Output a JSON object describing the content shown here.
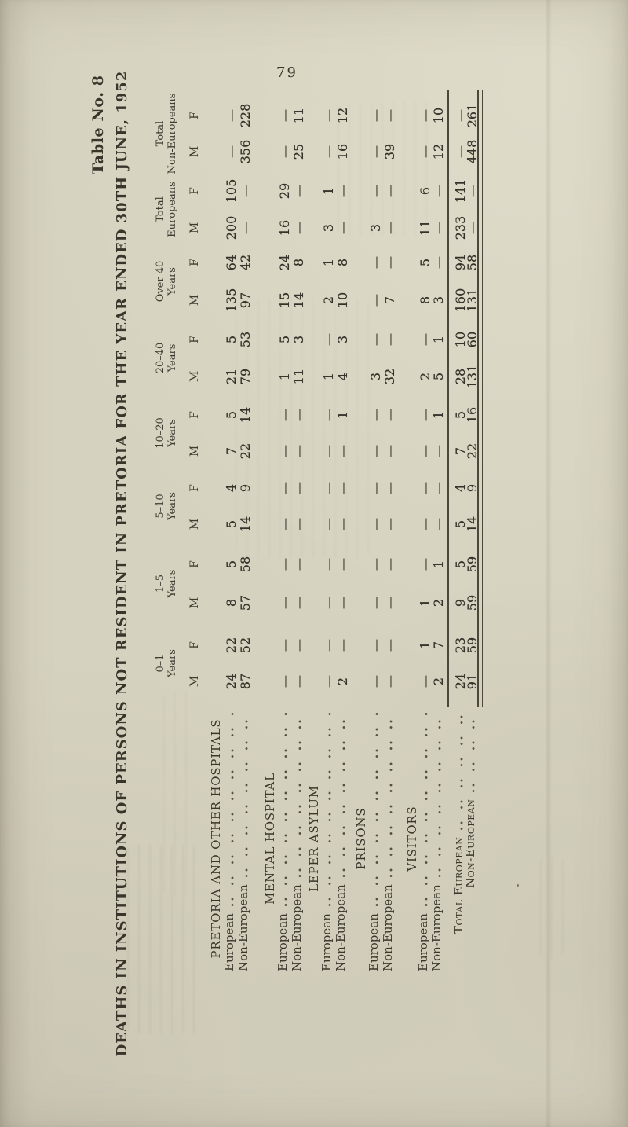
{
  "page": {
    "number": "79"
  },
  "table": {
    "label": "Table No. 8",
    "title": "DEATHS IN INSTITUTIONS OF PERSONS NOT RESIDENT IN PRETORIA FOR THE YEAR ENDED 30TH JUNE, 1952",
    "sex_labels": [
      "M",
      "F"
    ],
    "age_groups": [
      {
        "line1": "0–1",
        "line2": "Years"
      },
      {
        "line1": "1–5",
        "line2": "Years"
      },
      {
        "line1": "5–10",
        "line2": "Years"
      },
      {
        "line1": "10–20",
        "line2": "Years"
      },
      {
        "line1": "20–40",
        "line2": "Years"
      },
      {
        "line1": "Over 40",
        "line2": "Years"
      },
      {
        "line1": "Total",
        "line2": "Europeans"
      },
      {
        "line1": "Total",
        "line2": "Non-Europeans"
      }
    ],
    "sections": [
      {
        "heading": "PRETORIA AND OTHER HOSPITALS",
        "rows": [
          {
            "label": "European",
            "values": [
              "24",
              "22",
              "8",
              "5",
              "5",
              "4",
              "7",
              "5",
              "21",
              "5",
              "135",
              "64",
              "200",
              "105",
              "—",
              "—"
            ]
          },
          {
            "label": "Non-European",
            "values": [
              "87",
              "52",
              "57",
              "58",
              "14",
              "9",
              "22",
              "14",
              "79",
              "53",
              "97",
              "42",
              "—",
              "—",
              "356",
              "228"
            ]
          }
        ]
      },
      {
        "heading": "MENTAL HOSPITAL",
        "rows": [
          {
            "label": "European",
            "values": [
              "—",
              "—",
              "—",
              "—",
              "—",
              "—",
              "—",
              "—",
              "1",
              "5",
              "15",
              "24",
              "16",
              "29",
              "—",
              "—"
            ]
          },
          {
            "label": "Non-European",
            "values": [
              "—",
              "—",
              "—",
              "—",
              "—",
              "—",
              "—",
              "—",
              "11",
              "3",
              "14",
              "8",
              "—",
              "—",
              "25",
              "11"
            ]
          }
        ]
      },
      {
        "heading": "LEPER ASYLUM",
        "rows": [
          {
            "label": "European",
            "values": [
              "—",
              "—",
              "—",
              "—",
              "—",
              "—",
              "—",
              "—",
              "1",
              "—",
              "2",
              "1",
              "3",
              "1",
              "—",
              "—"
            ]
          },
          {
            "label": "Non-European",
            "values": [
              "2",
              "—",
              "—",
              "—",
              "—",
              "—",
              "—",
              "1",
              "4",
              "3",
              "10",
              "8",
              "—",
              "—",
              "16",
              "12"
            ]
          }
        ]
      },
      {
        "heading": "PRISONS",
        "rows": [
          {
            "label": "European",
            "values": [
              "—",
              "—",
              "—",
              "—",
              "—",
              "—",
              "—",
              "—",
              "3",
              "—",
              "—",
              "—",
              "3",
              "—",
              "—",
              "—"
            ]
          },
          {
            "label": "Non-European",
            "values": [
              "—",
              "—",
              "—",
              "—",
              "—",
              "—",
              "—",
              "—",
              "32",
              "—",
              "7",
              "—",
              "—",
              "—",
              "39",
              "—"
            ]
          }
        ]
      },
      {
        "heading": "VISITORS",
        "rows": [
          {
            "label": "European",
            "values": [
              "—",
              "1",
              "1",
              "—",
              "—",
              "—",
              "—",
              "—",
              "2",
              "—",
              "8",
              "5",
              "11",
              "6",
              "—",
              "—"
            ]
          },
          {
            "label": "Non-European",
            "values": [
              "2",
              "7",
              "2",
              "1",
              "—",
              "—",
              "—",
              "1",
              "5",
              "1",
              "3",
              "—",
              "—",
              "—",
              "12",
              "10"
            ]
          }
        ]
      }
    ],
    "totals": {
      "rows": [
        {
          "label": "Total European",
          "values": [
            "24",
            "23",
            "9",
            "5",
            "5",
            "4",
            "7",
            "5",
            "28",
            "10",
            "160",
            "94",
            "233",
            "141",
            "—",
            "—"
          ]
        },
        {
          "label": "Non-European",
          "values": [
            "91",
            "59",
            "59",
            "59",
            "14",
            "9",
            "22",
            "16",
            "131",
            "60",
            "131",
            "58",
            "—",
            "—",
            "448",
            "261"
          ]
        }
      ]
    }
  }
}
